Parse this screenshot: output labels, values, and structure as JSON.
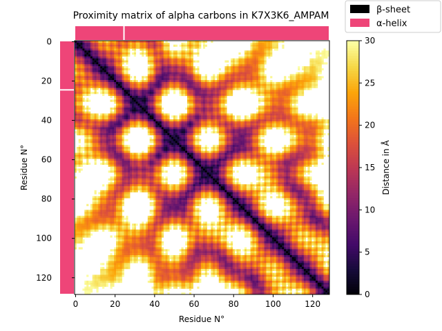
{
  "chart_data": {
    "type": "heatmap",
    "title": "Proximity matrix of alpha carbons in K7X3K6_AMPAM",
    "xlabel": "Residue N°",
    "ylabel": "Residue N°",
    "n_residues": 129,
    "xticks": [
      0,
      20,
      40,
      60,
      80,
      100,
      120
    ],
    "yticks": [
      0,
      20,
      40,
      60,
      80,
      100,
      120
    ],
    "colorbar": {
      "label": "Distance in Å",
      "range": [
        0,
        30
      ],
      "ticks": [
        0,
        5,
        10,
        15,
        20,
        25,
        30
      ],
      "colormap": "inferno",
      "above_range": "white"
    },
    "secondary_structure": {
      "segments": [
        {
          "start": 0,
          "end": 25,
          "type": "alpha-helix"
        },
        {
          "start": 25,
          "end": 129,
          "type": "alpha-helix"
        }
      ]
    },
    "legend": {
      "position": "top-right",
      "entries": [
        {
          "label": "β-sheet",
          "color": "#000000"
        },
        {
          "label": "α-helix",
          "color": "#ee4578"
        }
      ]
    }
  }
}
